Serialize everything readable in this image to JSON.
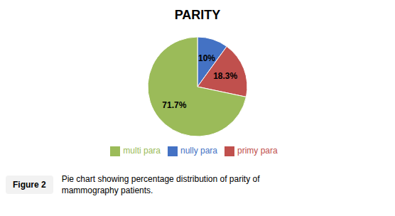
{
  "chart_data": {
    "type": "pie",
    "title": "PARITY",
    "categories": [
      "nully para",
      "primy para",
      "multi para"
    ],
    "values": [
      10.0,
      18.3,
      71.7
    ],
    "value_labels": [
      "10%",
      "18.3%",
      "71.7%"
    ],
    "colors": [
      "#4472C4",
      "#C0504D",
      "#9BBB59"
    ],
    "data_labels": true,
    "legend": "bottom",
    "annotations": [
      "Figure 2",
      "Pie chart showing percentage distribution of parity of\nmammography patients."
    ]
  }
}
